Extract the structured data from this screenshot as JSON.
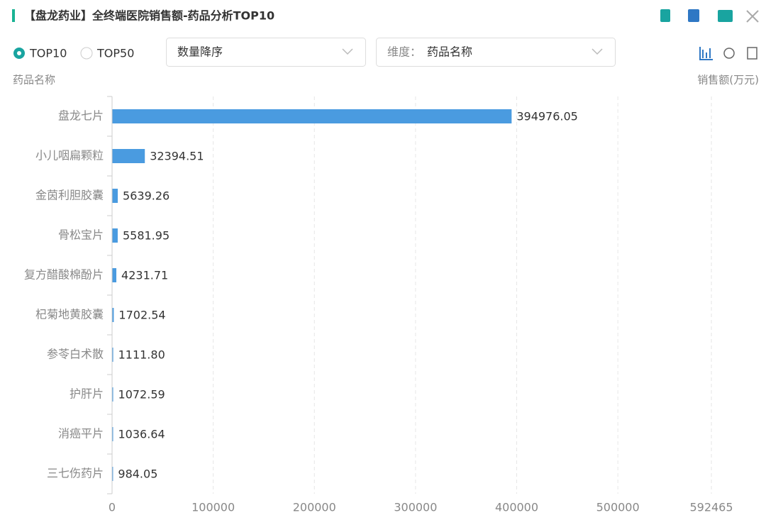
{
  "header": {
    "title": "【盘龙药业】全终端医院销售额-药品分析TOP10"
  },
  "controls": {
    "radios": [
      {
        "label": "TOP10",
        "checked": true
      },
      {
        "label": "TOP50",
        "checked": false
      }
    ],
    "sort": "数量降序",
    "dimension_label": "维度：",
    "dimension_value": "药品名称"
  },
  "chart_data": {
    "type": "hbar",
    "y_label": "药品名称",
    "x_label": "销售额(万元)",
    "categories": [
      "盘龙七片",
      "小儿咽扁颗粒",
      "金茵利胆胶囊",
      "骨松宝片",
      "复方醋酸棉酚片",
      "杞菊地黄胶囊",
      "参苓白术散",
      "护肝片",
      "消癌平片",
      "三七伤药片"
    ],
    "values": [
      394976.05,
      32394.51,
      5639.26,
      5581.95,
      4231.71,
      1702.54,
      1111.8,
      1072.59,
      1036.64,
      984.05
    ],
    "value_labels": [
      "394976.05",
      "32394.51",
      "5639.26",
      "5581.95",
      "4231.71",
      "1702.54",
      "1111.80",
      "1072.59",
      "1036.64",
      "984.05"
    ],
    "color": "#4a9be0",
    "xlim": [
      0,
      592465
    ],
    "xticks": [
      0,
      100000,
      200000,
      300000,
      400000,
      500000,
      592465
    ],
    "grid": true
  }
}
